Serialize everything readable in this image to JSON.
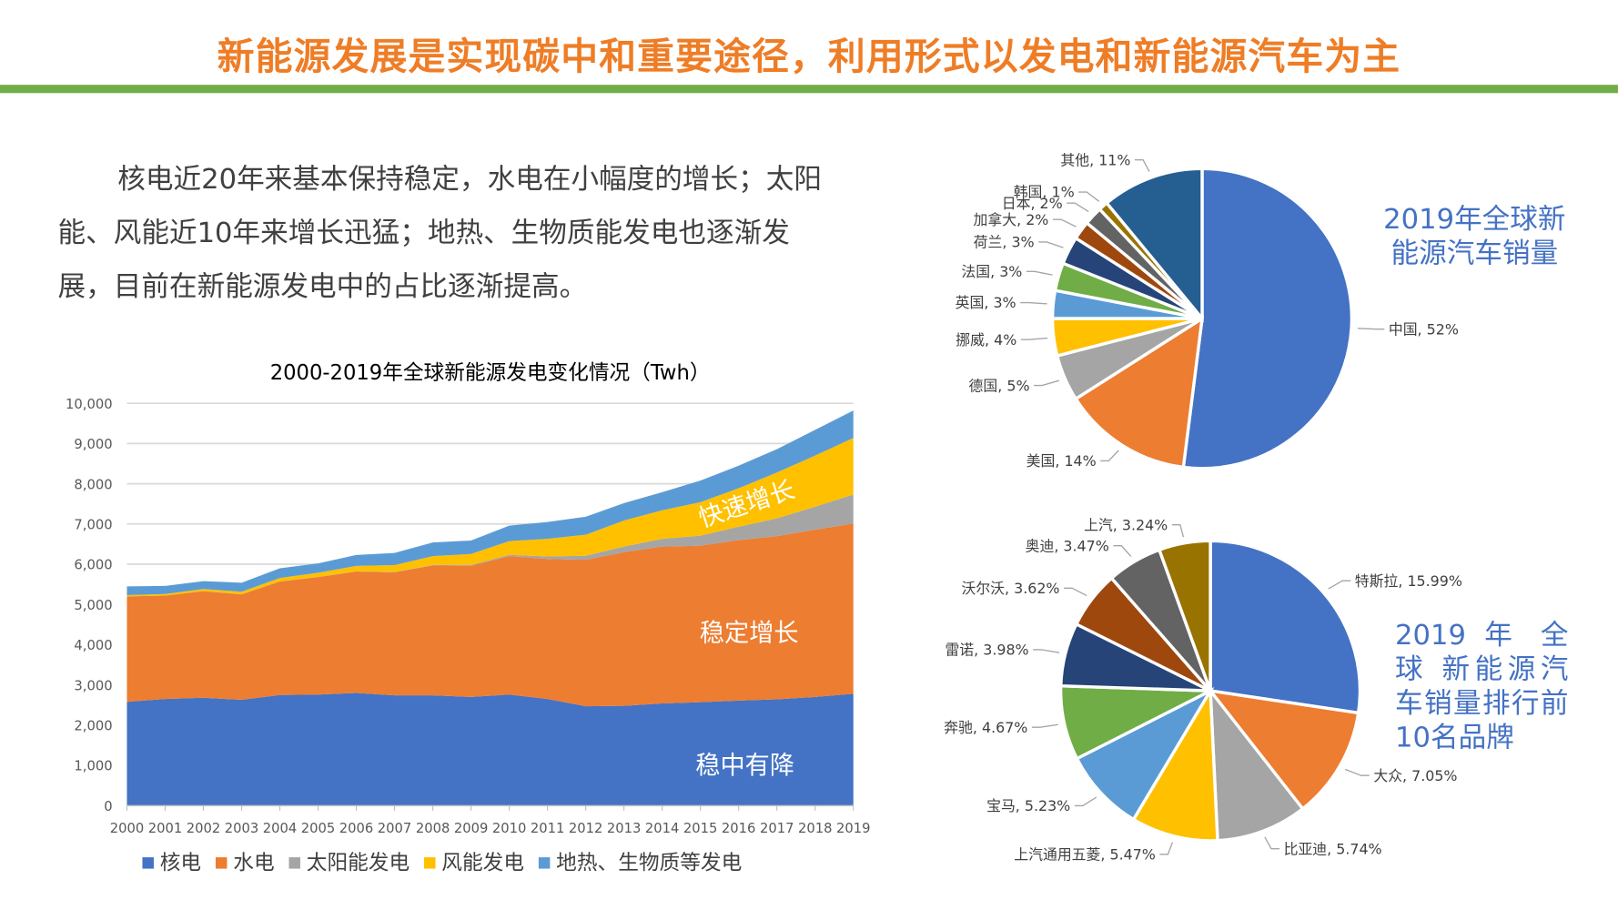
{
  "title": "新能源发展是实现碳中和重要途径，利用形式以发电和新能源汽车为主",
  "paragraph": "核电近20年来基本保持稳定，水电在小幅度的增长；太阳能、风能近10年来增长迅猛；地热、生物质能发电也逐渐发展，目前在新能源发电中的占比逐渐提高。",
  "colors": {
    "title": "#ee7d26",
    "accent_bar": "#70ad47",
    "pie_title": "#4472c4"
  },
  "chart_data": [
    {
      "type": "area",
      "stacked": true,
      "title": "2000-2019年全球新能源发电变化情况（Twh）",
      "x": [
        "2000",
        "2001",
        "2002",
        "2003",
        "2004",
        "2005",
        "2006",
        "2007",
        "2008",
        "2009",
        "2010",
        "2011",
        "2012",
        "2013",
        "2014",
        "2015",
        "2016",
        "2017",
        "2018",
        "2019"
      ],
      "ylim": [
        0,
        10000
      ],
      "yticks": [
        "0",
        "1,000",
        "2,000",
        "3,000",
        "4,000",
        "5,000",
        "6,000",
        "7,000",
        "8,000",
        "9,000",
        "10,000"
      ],
      "grid": true,
      "legend_position": "bottom",
      "series": [
        {
          "name": "核电",
          "color": "#4472c4",
          "values": [
            2580,
            2650,
            2680,
            2630,
            2750,
            2760,
            2800,
            2740,
            2740,
            2700,
            2760,
            2650,
            2470,
            2480,
            2540,
            2570,
            2610,
            2640,
            2700,
            2780
          ]
        },
        {
          "name": "水电",
          "color": "#ed7d31",
          "values": [
            2620,
            2570,
            2650,
            2620,
            2820,
            2920,
            3020,
            3060,
            3230,
            3260,
            3440,
            3480,
            3640,
            3820,
            3900,
            3890,
            3990,
            4060,
            4160,
            4230
          ]
        },
        {
          "name": "太阳能发电",
          "color": "#a5a5a5",
          "values": [
            1,
            1,
            2,
            3,
            4,
            4,
            5,
            8,
            12,
            20,
            32,
            63,
            100,
            140,
            190,
            250,
            330,
            440,
            570,
            720
          ]
        },
        {
          "name": "风能发电",
          "color": "#ffc000",
          "values": [
            31,
            38,
            52,
            63,
            85,
            104,
            133,
            170,
            220,
            276,
            342,
            437,
            524,
            645,
            712,
            831,
            958,
            1140,
            1270,
            1410
          ]
        },
        {
          "name": "地热、生物质等发电",
          "color": "#5b9bd5",
          "values": [
            218,
            201,
            196,
            224,
            241,
            232,
            272,
            302,
            338,
            334,
            386,
            420,
            446,
            435,
            448,
            539,
            562,
            580,
            640,
            680
          ]
        }
      ],
      "annotations": [
        "快速增长",
        "稳定增长",
        "稳中有降"
      ]
    },
    {
      "type": "pie",
      "title": "2019年全球新能源汽车销量",
      "slices": [
        {
          "label": "中国",
          "value": 52,
          "text": "中国, 52%",
          "color": "#4472c4"
        },
        {
          "label": "美国",
          "value": 14,
          "text": "美国, 14%",
          "color": "#ed7d31"
        },
        {
          "label": "德国",
          "value": 5,
          "text": "德国, 5%",
          "color": "#a5a5a5"
        },
        {
          "label": "挪威",
          "value": 4,
          "text": "挪威, 4%",
          "color": "#ffc000"
        },
        {
          "label": "英国",
          "value": 3,
          "text": "英国, 3%",
          "color": "#5b9bd5"
        },
        {
          "label": "法国",
          "value": 3,
          "text": "法国, 3%",
          "color": "#70ad47"
        },
        {
          "label": "荷兰",
          "value": 3,
          "text": "荷兰, 3%",
          "color": "#264478"
        },
        {
          "label": "加拿大",
          "value": 2,
          "text": "加拿大, 2%",
          "color": "#9e480e"
        },
        {
          "label": "日本",
          "value": 2,
          "text": "日本, 2%",
          "color": "#636363"
        },
        {
          "label": "韩国",
          "value": 1,
          "text": "韩国, 1%",
          "color": "#997300"
        },
        {
          "label": "其他",
          "value": 11,
          "text": "其他, 11%",
          "color": "#255e91"
        }
      ]
    },
    {
      "type": "pie",
      "title": "2019 年 全 球 新能源汽车销量排行前10名品牌",
      "slices": [
        {
          "label": "特斯拉",
          "value": 15.99,
          "text": "特斯拉, 15.99%",
          "color": "#4472c4"
        },
        {
          "label": "大众",
          "value": 7.05,
          "text": "大众, 7.05%",
          "color": "#ed7d31"
        },
        {
          "label": "比亚迪",
          "value": 5.74,
          "text": "比亚迪, 5.74%",
          "color": "#a5a5a5"
        },
        {
          "label": "上汽通用五菱",
          "value": 5.47,
          "text": "上汽通用五菱, 5.47%",
          "color": "#ffc000"
        },
        {
          "label": "宝马",
          "value": 5.23,
          "text": "宝马, 5.23%",
          "color": "#5b9bd5"
        },
        {
          "label": "奔驰",
          "value": 4.67,
          "text": "奔驰, 4.67%",
          "color": "#70ad47"
        },
        {
          "label": "雷诺",
          "value": 3.98,
          "text": "雷诺, 3.98%",
          "color": "#264478"
        },
        {
          "label": "沃尔沃",
          "value": 3.62,
          "text": "沃尔沃, 3.62%",
          "color": "#9e480e"
        },
        {
          "label": "奥迪",
          "value": 3.47,
          "text": "奥迪, 3.47%",
          "color": "#636363"
        },
        {
          "label": "上汽",
          "value": 3.24,
          "text": "上汽, 3.24%",
          "color": "#997300"
        }
      ]
    }
  ]
}
